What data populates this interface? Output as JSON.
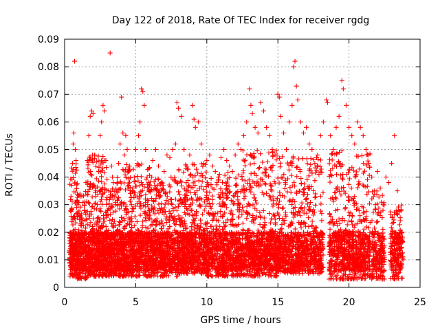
{
  "chart_data": {
    "type": "scatter",
    "title": "Day 122 of 2018, Rate Of TEC Index for receiver rgdg",
    "xlabel": "GPS time / hours",
    "ylabel": "ROTI / TECUs",
    "xlim": [
      0,
      25
    ],
    "ylim": [
      0,
      0.09
    ],
    "xticks": [
      0,
      5,
      10,
      15,
      20,
      25
    ],
    "xtick_labels": [
      "0",
      "5",
      "10",
      "15",
      "20",
      "25"
    ],
    "yticks": [
      0,
      0.01,
      0.02,
      0.03,
      0.04,
      0.05,
      0.06,
      0.07,
      0.08,
      0.09
    ],
    "ytick_labels": [
      "0",
      "0.01",
      "0.02",
      "0.03",
      "0.04",
      "0.05",
      "0.06",
      "0.07",
      "0.08",
      "0.09"
    ],
    "grid": true,
    "marker": "+",
    "color": "#ff0000",
    "series": [
      {
        "points": [
          [
            0.35,
            0.009
          ],
          [
            0.4,
            0.014
          ],
          [
            0.45,
            0.033
          ],
          [
            0.5,
            0.037
          ],
          [
            0.55,
            0.045
          ],
          [
            0.6,
            0.052
          ],
          [
            0.65,
            0.056
          ],
          [
            0.7,
            0.082
          ],
          [
            0.75,
            0.05
          ],
          [
            0.8,
            0.046
          ],
          [
            0.9,
            0.027
          ],
          [
            1.0,
            0.02
          ],
          [
            1.1,
            0.012
          ],
          [
            1.2,
            0.008
          ],
          [
            1.3,
            0.018
          ],
          [
            1.4,
            0.028
          ],
          [
            1.5,
            0.038
          ],
          [
            1.6,
            0.046
          ],
          [
            1.7,
            0.055
          ],
          [
            1.8,
            0.062
          ],
          [
            1.9,
            0.064
          ],
          [
            2.0,
            0.063
          ],
          [
            2.1,
            0.048
          ],
          [
            2.2,
            0.035
          ],
          [
            2.3,
            0.03
          ],
          [
            2.4,
            0.042
          ],
          [
            2.5,
            0.055
          ],
          [
            2.6,
            0.06
          ],
          [
            2.7,
            0.066
          ],
          [
            2.8,
            0.064
          ],
          [
            2.9,
            0.046
          ],
          [
            3.0,
            0.028
          ],
          [
            3.1,
            0.035
          ],
          [
            3.2,
            0.085
          ],
          [
            3.3,
            0.044
          ],
          [
            3.4,
            0.032
          ],
          [
            3.5,
            0.024
          ],
          [
            3.6,
            0.03
          ],
          [
            3.7,
            0.038
          ],
          [
            3.8,
            0.045
          ],
          [
            3.9,
            0.052
          ],
          [
            4.0,
            0.069
          ],
          [
            4.1,
            0.056
          ],
          [
            4.2,
            0.048
          ],
          [
            4.3,
            0.055
          ],
          [
            4.4,
            0.05
          ],
          [
            4.5,
            0.042
          ],
          [
            4.6,
            0.035
          ],
          [
            4.7,
            0.03
          ],
          [
            4.8,
            0.036
          ],
          [
            4.9,
            0.04
          ],
          [
            5.0,
            0.05
          ],
          [
            5.1,
            0.045
          ],
          [
            5.2,
            0.055
          ],
          [
            5.3,
            0.06
          ],
          [
            5.4,
            0.072
          ],
          [
            5.5,
            0.071
          ],
          [
            5.6,
            0.066
          ],
          [
            5.7,
            0.05
          ],
          [
            5.8,
            0.04
          ],
          [
            5.9,
            0.038
          ],
          [
            6.0,
            0.035
          ],
          [
            6.2,
            0.046
          ],
          [
            6.4,
            0.05
          ],
          [
            6.6,
            0.044
          ],
          [
            6.8,
            0.038
          ],
          [
            7.0,
            0.042
          ],
          [
            7.2,
            0.048
          ],
          [
            7.4,
            0.047
          ],
          [
            7.6,
            0.05
          ],
          [
            7.8,
            0.052
          ],
          [
            7.9,
            0.067
          ],
          [
            8.0,
            0.065
          ],
          [
            8.2,
            0.062
          ],
          [
            8.4,
            0.05
          ],
          [
            8.6,
            0.044
          ],
          [
            8.8,
            0.048
          ],
          [
            9.0,
            0.066
          ],
          [
            9.1,
            0.061
          ],
          [
            9.2,
            0.058
          ],
          [
            9.4,
            0.06
          ],
          [
            9.6,
            0.052
          ],
          [
            9.8,
            0.045
          ],
          [
            10.0,
            0.046
          ],
          [
            10.2,
            0.048
          ],
          [
            10.4,
            0.044
          ],
          [
            10.6,
            0.042
          ],
          [
            10.8,
            0.04
          ],
          [
            11.0,
            0.047
          ],
          [
            11.2,
            0.05
          ],
          [
            11.4,
            0.046
          ],
          [
            11.6,
            0.044
          ],
          [
            11.8,
            0.042
          ],
          [
            12.0,
            0.048
          ],
          [
            12.2,
            0.052
          ],
          [
            12.4,
            0.05
          ],
          [
            12.6,
            0.055
          ],
          [
            12.8,
            0.06
          ],
          [
            13.0,
            0.072
          ],
          [
            13.1,
            0.066
          ],
          [
            13.2,
            0.063
          ],
          [
            13.4,
            0.058
          ],
          [
            13.6,
            0.056
          ],
          [
            13.8,
            0.067
          ],
          [
            14.0,
            0.064
          ],
          [
            14.2,
            0.058
          ],
          [
            14.4,
            0.055
          ],
          [
            14.6,
            0.05
          ],
          [
            14.8,
            0.048
          ],
          [
            15.0,
            0.07
          ],
          [
            15.1,
            0.069
          ],
          [
            15.2,
            0.062
          ],
          [
            15.4,
            0.056
          ],
          [
            15.6,
            0.05
          ],
          [
            15.8,
            0.06
          ],
          [
            16.0,
            0.066
          ],
          [
            16.1,
            0.08
          ],
          [
            16.2,
            0.082
          ],
          [
            16.3,
            0.073
          ],
          [
            16.4,
            0.068
          ],
          [
            16.6,
            0.06
          ],
          [
            16.8,
            0.056
          ],
          [
            17.0,
            0.058
          ],
          [
            17.2,
            0.052
          ],
          [
            17.4,
            0.05
          ],
          [
            17.6,
            0.045
          ],
          [
            17.8,
            0.048
          ],
          [
            18.0,
            0.055
          ],
          [
            18.2,
            0.06
          ],
          [
            18.4,
            0.068
          ],
          [
            18.5,
            0.067
          ],
          [
            18.7,
            0.055
          ],
          [
            18.9,
            0.05
          ],
          [
            19.1,
            0.058
          ],
          [
            19.3,
            0.062
          ],
          [
            19.5,
            0.075
          ],
          [
            19.6,
            0.072
          ],
          [
            19.8,
            0.066
          ],
          [
            20.0,
            0.058
          ],
          [
            20.2,
            0.055
          ],
          [
            20.4,
            0.052
          ],
          [
            20.6,
            0.06
          ],
          [
            20.8,
            0.058
          ],
          [
            21.0,
            0.055
          ],
          [
            21.2,
            0.05
          ],
          [
            21.4,
            0.045
          ],
          [
            21.6,
            0.04
          ],
          [
            21.8,
            0.035
          ],
          [
            22.0,
            0.042
          ],
          [
            22.2,
            0.036
          ],
          [
            22.4,
            0.03
          ],
          [
            22.6,
            0.04
          ],
          [
            22.8,
            0.038
          ],
          [
            23.0,
            0.045
          ],
          [
            23.2,
            0.055
          ],
          [
            23.4,
            0.035
          ],
          [
            23.6,
            0.02
          ],
          [
            23.8,
            0.01
          ]
        ],
        "bands": [
          {
            "x": [
              0.35,
              0.9
            ],
            "lo": 0.004,
            "hi": 0.045,
            "n": 260
          },
          {
            "x": [
              0.9,
              1.6
            ],
            "lo": 0.003,
            "hi": 0.035,
            "n": 300
          },
          {
            "x": [
              1.6,
              3.0
            ],
            "lo": 0.004,
            "hi": 0.048,
            "n": 600
          },
          {
            "x": [
              3.0,
              4.0
            ],
            "lo": 0.004,
            "hi": 0.04,
            "n": 380
          },
          {
            "x": [
              4.0,
              6.0
            ],
            "lo": 0.004,
            "hi": 0.045,
            "n": 700
          },
          {
            "x": [
              6.0,
              8.0
            ],
            "lo": 0.004,
            "hi": 0.04,
            "n": 680
          },
          {
            "x": [
              8.0,
              10.0
            ],
            "lo": 0.005,
            "hi": 0.045,
            "n": 700
          },
          {
            "x": [
              10.0,
              12.5
            ],
            "lo": 0.004,
            "hi": 0.042,
            "n": 780
          },
          {
            "x": [
              12.5,
              15.0
            ],
            "lo": 0.004,
            "hi": 0.05,
            "n": 820
          },
          {
            "x": [
              15.0,
              18.2
            ],
            "lo": 0.005,
            "hi": 0.048,
            "n": 900
          },
          {
            "x": [
              18.6,
              21.5
            ],
            "lo": 0.003,
            "hi": 0.05,
            "n": 820
          },
          {
            "x": [
              21.6,
              22.5
            ],
            "lo": 0.003,
            "hi": 0.035,
            "n": 220
          },
          {
            "x": [
              22.9,
              23.8
            ],
            "lo": 0.003,
            "hi": 0.032,
            "n": 220
          }
        ],
        "dense_floor": {
          "lo": 0.006,
          "hi": 0.02
        }
      }
    ]
  }
}
